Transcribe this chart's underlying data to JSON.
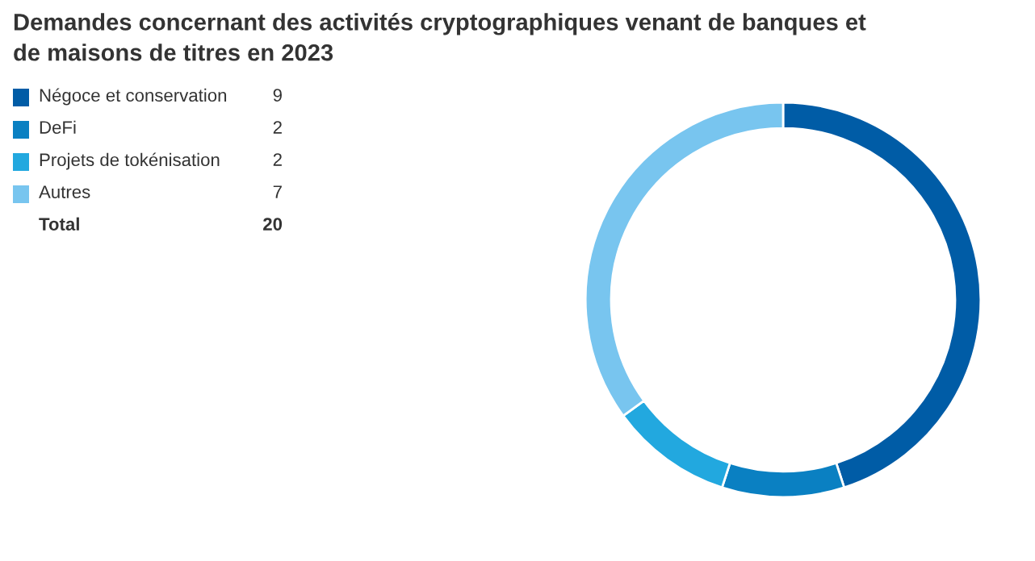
{
  "chart_data": {
    "type": "donut",
    "title": "Demandes concernant des activités cryptographiques venant de banques et\nde maisons de titres en 2023",
    "categories": [
      "Négoce et conservation",
      "DeFi",
      "Projets de tokénisation",
      "Autres"
    ],
    "values": [
      9,
      2,
      2,
      7
    ],
    "colors": [
      "#005ca6",
      "#0a80c2",
      "#22a8df",
      "#78c5ef"
    ],
    "data_labels": true,
    "legend": "left",
    "annotations": [
      "Total",
      "20"
    ]
  }
}
